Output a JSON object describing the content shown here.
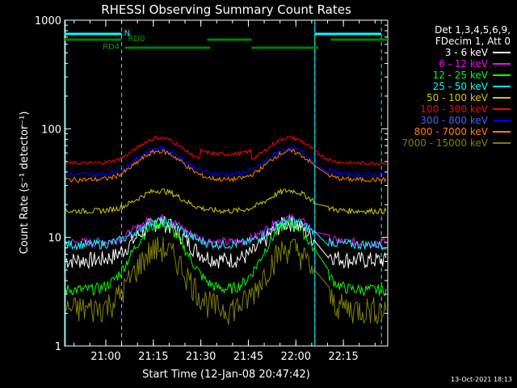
{
  "chart_data": {
    "type": "line",
    "title": "RHESSI Observing Summary Count Rates",
    "xlabel": "Start Time (12-Jan-08 20:47:42)",
    "ylabel": "Count Rate (s⁻¹ detector⁻¹)",
    "yscale": "log",
    "ylim": [
      1,
      1000
    ],
    "xlim_minutes": [
      -13,
      89
    ],
    "x_ticks": [
      "21:00",
      "21:15",
      "21:30",
      "21:45",
      "22:00",
      "22:15"
    ],
    "x_tick_minutes": [
      0,
      15,
      30,
      45,
      60,
      75
    ],
    "y_ticks": [
      "1",
      "10",
      "100",
      "1000"
    ],
    "y_tick_values": [
      1,
      10,
      100,
      1000
    ],
    "legend_header": [
      "Det 1,3,4,5,6,9,",
      "FDecim 1, Att 0"
    ],
    "series": [
      {
        "name": "3 - 6 keV",
        "color": "#ffffff"
      },
      {
        "name": "6 - 12 keV",
        "color": "#ff00ff"
      },
      {
        "name": "12 - 25 keV",
        "color": "#00ff00"
      },
      {
        "name": "25 - 50 keV",
        "color": "#00ffff"
      },
      {
        "name": "50 - 100 keV",
        "color": "#d4c800"
      },
      {
        "name": "100 - 300 keV",
        "color": "#ff0000"
      },
      {
        "name": "300 - 800 keV",
        "color": "#0000ff"
      },
      {
        "name": "800 - 7000 keV",
        "color": "#ff8000"
      },
      {
        "name": "7000 - 15000 keV",
        "color": "#808000"
      }
    ],
    "annotations": {
      "night_label": "N",
      "rd0_label": "RD0",
      "rd4_label": "RD4",
      "night_boundaries_minutes": [
        5,
        66,
        87
      ],
      "night_intervals_minutes": [
        [
          -13,
          5
        ],
        [
          66,
          87
        ]
      ],
      "rd0_intervals_minutes": [
        [
          -13,
          5
        ],
        [
          32,
          46
        ],
        [
          71,
          89
        ]
      ],
      "rd4_intervals_minutes": [
        [
          6,
          33
        ],
        [
          46,
          67
        ]
      ]
    }
  },
  "footer": {
    "timestamp": "13-Oct-2021 18:13"
  }
}
